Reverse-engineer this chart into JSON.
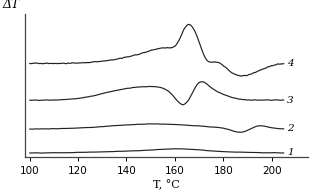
{
  "title": "",
  "xlabel": "T, °C",
  "ylabel": "ΔT",
  "xmin": 100,
  "xmax": 205,
  "xticks": [
    100,
    120,
    140,
    160,
    180,
    200
  ],
  "curve_labels": [
    "1",
    "2",
    "3",
    "4"
  ],
  "curve_color": "#222222",
  "background_color": "#ffffff",
  "linewidth": 0.85,
  "offsets": [
    0.0,
    0.28,
    0.62,
    1.05
  ]
}
